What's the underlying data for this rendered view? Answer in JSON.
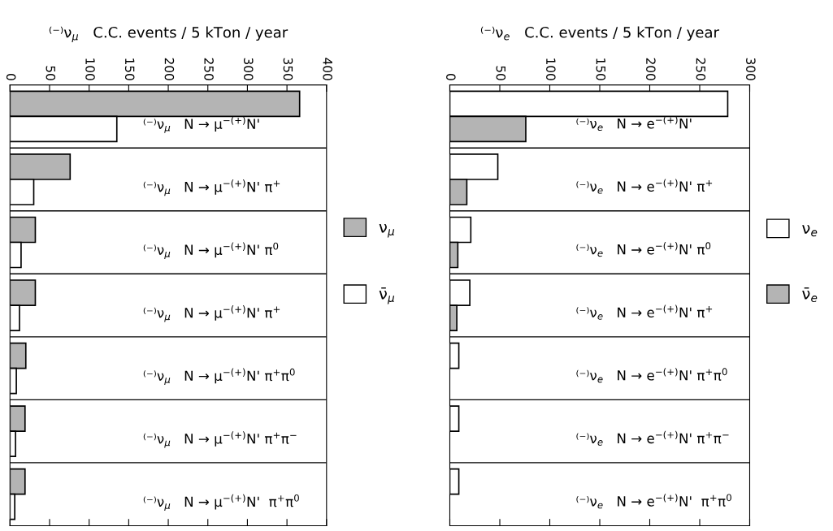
{
  "chart_data": [
    {
      "type": "bar",
      "orientation": "horizontal",
      "title": "⁽⁻⁾ν$_{μ}$   C.C. events / 5 kTon / year",
      "categories": [
        "⁽⁻⁾ν$_{μ}$   N → μ$^{−(+)}$N'",
        "⁽⁻⁾ν$_{μ}$   N → μ$^{−(+)}$N' π$^{+}$",
        "⁽⁻⁾ν$_{μ}$   N → μ$^{−(+)}$N' π$^{0}$",
        "⁽⁻⁾ν$_{μ}$   N → μ$^{−(+)}$N' π$^{+}$",
        "⁽⁻⁾ν$_{μ}$   N → μ$^{−(+)}$N' π$^{+}$π$^{0}$",
        "⁽⁻⁾ν$_{μ}$   N → μ$^{−(+)}$N' π$^{+}$π$^{−}$",
        "⁽⁻⁾ν$_{μ}$   N → μ$^{−(+)}$N'  π$^{+}$π$^{0}$"
      ],
      "series": [
        {
          "name": "ν$_{μ}$",
          "color": "#b4b4b4",
          "values": [
            366,
            76,
            32,
            32,
            20,
            19,
            19
          ]
        },
        {
          "name": "ν̄$_{μ}$",
          "color": "#ffffff",
          "values": [
            135,
            30,
            14,
            12,
            8,
            7,
            6
          ]
        }
      ],
      "xlim": [
        0,
        400
      ],
      "xticks": [
        0,
        50,
        100,
        150,
        200,
        250,
        300,
        350,
        400
      ],
      "grid": "y",
      "legend": "right"
    },
    {
      "type": "bar",
      "orientation": "horizontal",
      "title": "⁽⁻⁾ν$_{e}$   C.C. events / 5 kTon / year",
      "categories": [
        "⁽⁻⁾ν$_{e}$   N → e$^{−(+)}$N'",
        "⁽⁻⁾ν$_{e}$   N → e$^{−(+)}$N' π$^{+}$",
        "⁽⁻⁾ν$_{e}$   N → e$^{−(+)}$N' π$^{0}$",
        "⁽⁻⁾ν$_{e}$   N → e$^{−(+)}$N' π$^{+}$",
        "⁽⁻⁾ν$_{e}$   N → e$^{−(+)}$N' π$^{+}$π$^{0}$",
        "⁽⁻⁾ν$_{e}$   N → e$^{−(+)}$N' π$^{+}$π$^{−}$",
        "⁽⁻⁾ν$_{e}$   N → e$^{−(+)}$N'  π$^{+}$π$^{0}$"
      ],
      "series": [
        {
          "name": "ν$_{e}$",
          "color": "#ffffff",
          "values": [
            278,
            48,
            21,
            20,
            9,
            9,
            9
          ]
        },
        {
          "name": "ν̄$_{e}$",
          "color": "#b4b4b4",
          "values": [
            76,
            17,
            8,
            7,
            null,
            null,
            null
          ]
        }
      ],
      "xlim": [
        0,
        300
      ],
      "xticks": [
        0,
        50,
        100,
        150,
        200,
        250,
        300
      ],
      "grid": "y",
      "legend": "right"
    }
  ]
}
